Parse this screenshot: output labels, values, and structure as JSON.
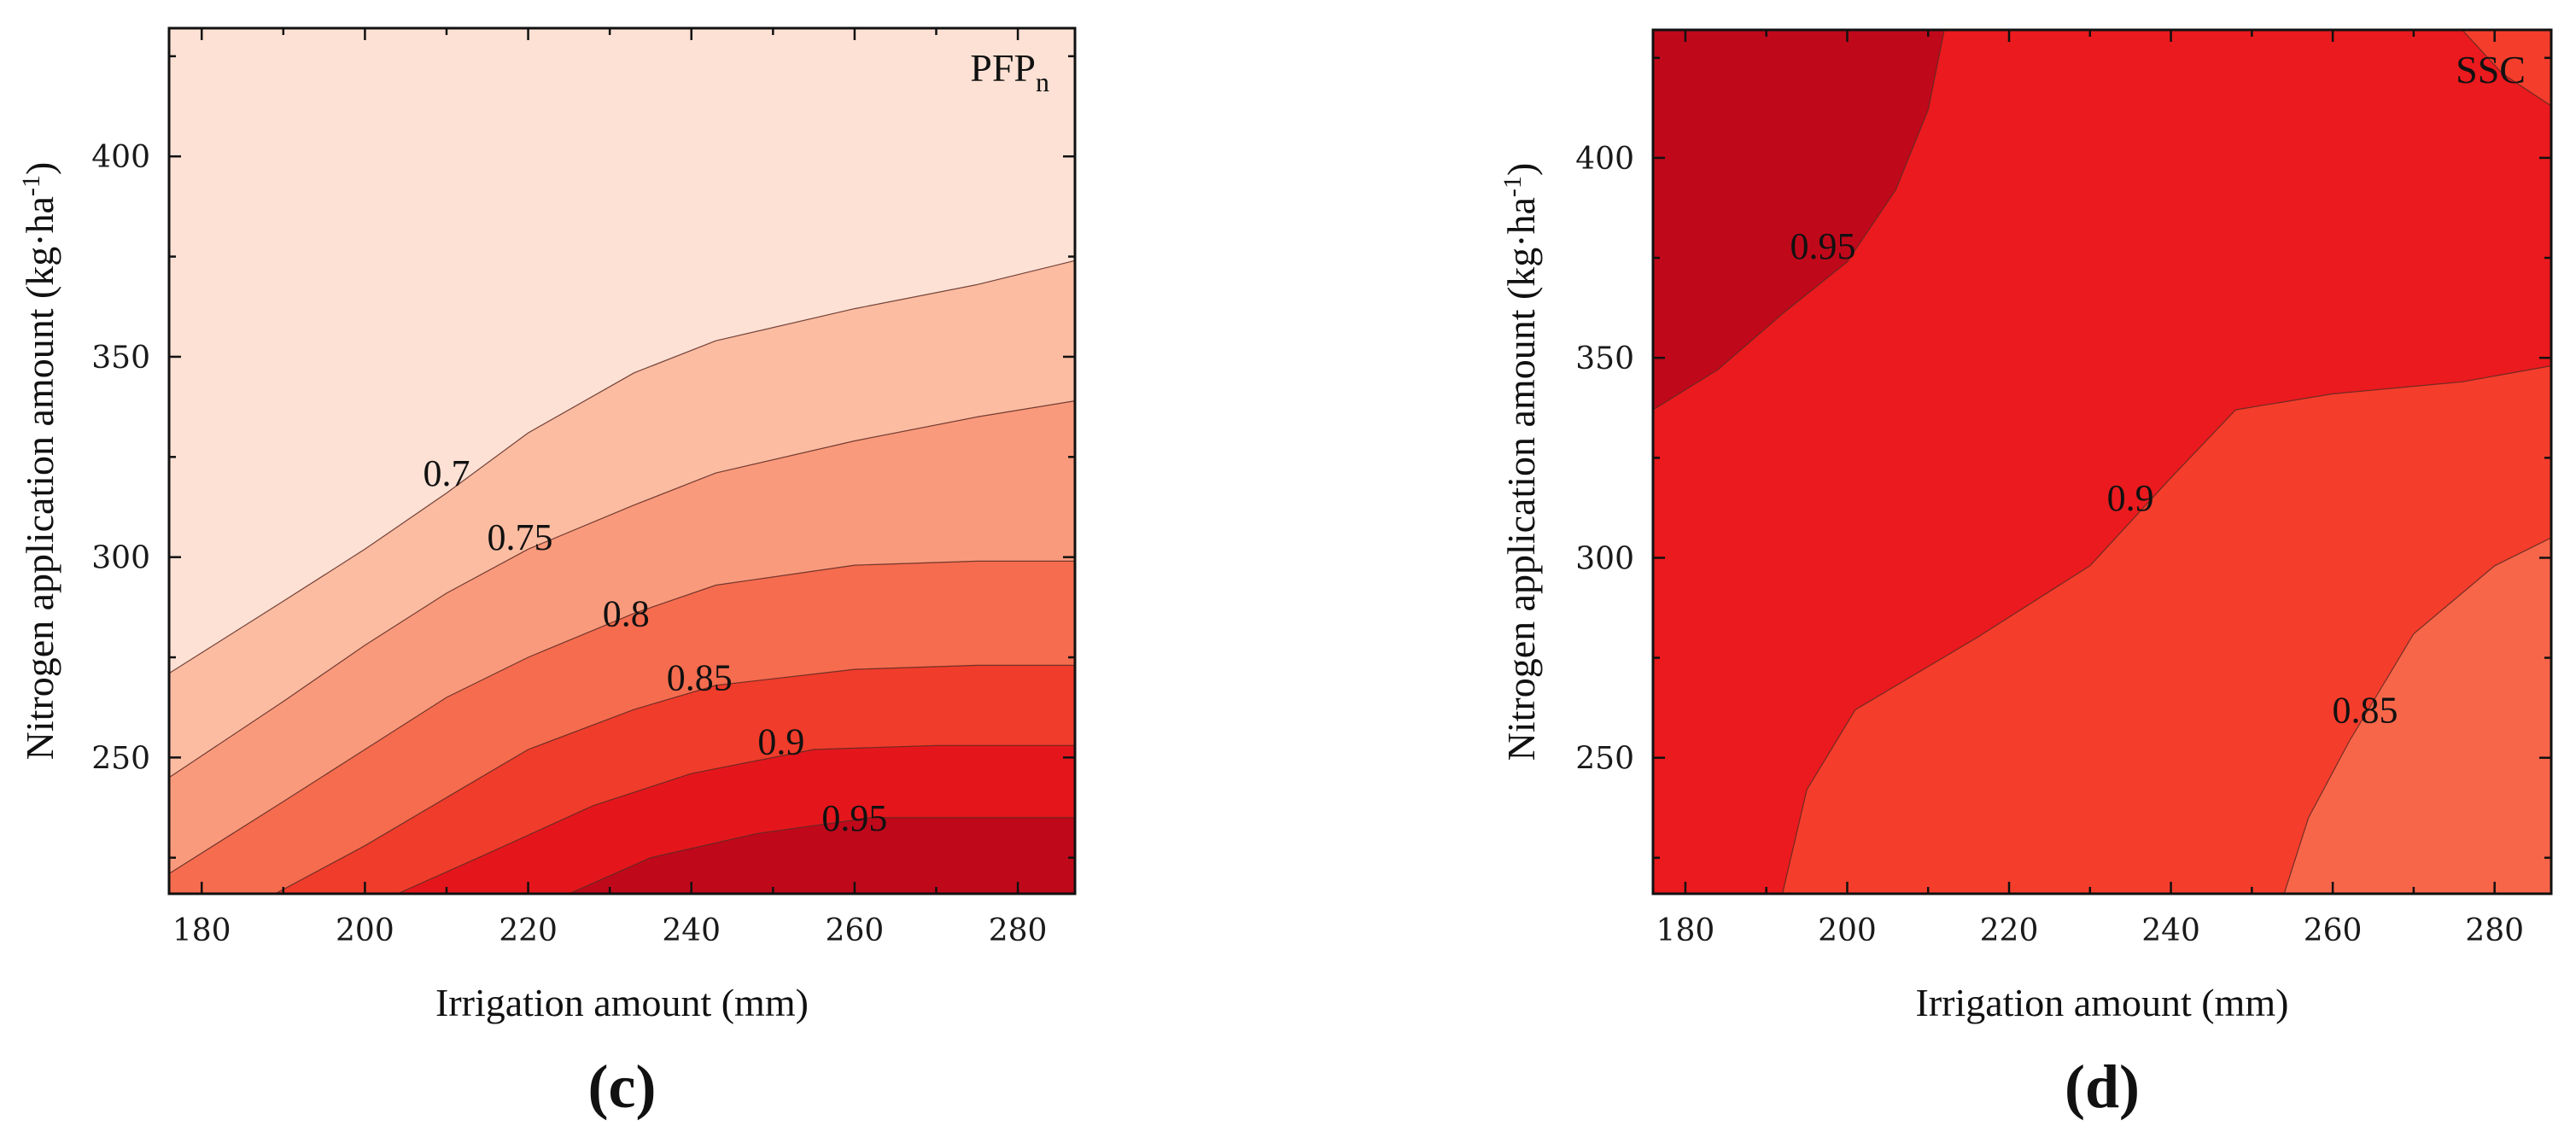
{
  "figure": {
    "chart_data": [
      {
        "type": "contour",
        "panel": "c",
        "caption": "(c)",
        "label_main": "PFP",
        "label_sub": "n",
        "xlabel": "Irrigation amount (mm)",
        "ylabel_main": "Nitrogen application amount (kg·ha",
        "ylabel_sup": "-1",
        "ylabel_close": ")",
        "xlim": [
          176,
          287
        ],
        "ylim": [
          216,
          432
        ],
        "xticks": [
          180,
          200,
          220,
          240,
          260,
          280
        ],
        "yticks": [
          250,
          300,
          350,
          400
        ],
        "xtick_labels": [
          "180",
          "200",
          "220",
          "240",
          "260",
          "280"
        ],
        "ytick_labels": [
          "250",
          "300",
          "350",
          "400"
        ],
        "levels": [
          {
            "value": 0.7,
            "label": "0.7",
            "label_at": [
              210,
              321
            ],
            "boundary": [
              [
                176,
                271
              ],
              [
                190,
                289
              ],
              [
                200,
                302
              ],
              [
                210,
                316
              ],
              [
                220,
                331
              ],
              [
                233,
                346
              ],
              [
                243,
                354
              ],
              [
                260,
                362
              ],
              [
                275,
                368
              ],
              [
                287,
                374
              ]
            ]
          },
          {
            "value": 0.75,
            "label": "0.75",
            "label_at": [
              219,
              305
            ],
            "boundary": [
              [
                176,
                245
              ],
              [
                190,
                264
              ],
              [
                200,
                278
              ],
              [
                210,
                291
              ],
              [
                220,
                302
              ],
              [
                233,
                313
              ],
              [
                243,
                321
              ],
              [
                260,
                329
              ],
              [
                275,
                335
              ],
              [
                287,
                339
              ]
            ]
          },
          {
            "value": 0.8,
            "label": "0.8",
            "label_at": [
              232,
              286
            ],
            "boundary": [
              [
                176,
                221
              ],
              [
                190,
                239
              ],
              [
                200,
                252
              ],
              [
                210,
                265
              ],
              [
                220,
                275
              ],
              [
                233,
                286
              ],
              [
                243,
                293
              ],
              [
                260,
                298
              ],
              [
                275,
                299
              ],
              [
                287,
                299
              ]
            ]
          },
          {
            "value": 0.85,
            "label": "0.85",
            "label_at": [
              241,
              270
            ],
            "boundary": [
              [
                189,
                216
              ],
              [
                200,
                228
              ],
              [
                210,
                240
              ],
              [
                220,
                252
              ],
              [
                233,
                262
              ],
              [
                243,
                268
              ],
              [
                260,
                272
              ],
              [
                275,
                273
              ],
              [
                287,
                273
              ]
            ]
          },
          {
            "value": 0.9,
            "label": "0.9",
            "label_at": [
              251,
              254
            ],
            "boundary": [
              [
                204,
                216
              ],
              [
                215,
                226
              ],
              [
                228,
                238
              ],
              [
                240,
                246
              ],
              [
                255,
                252
              ],
              [
                270,
                253
              ],
              [
                287,
                253
              ]
            ]
          },
          {
            "value": 0.95,
            "label": "0.95",
            "label_at": [
              260,
              235
            ],
            "boundary": [
              [
                225,
                216
              ],
              [
                235,
                225
              ],
              [
                248,
                231
              ],
              [
                262,
                235
              ],
              [
                287,
                235
              ]
            ]
          }
        ],
        "band_colors": [
          "#fde1d4",
          "#fcbca2",
          "#fa9a7c",
          "#f66c4f",
          "#f03c2b",
          "#e4161c",
          "#c0081b"
        ]
      },
      {
        "type": "contour",
        "panel": "d",
        "caption": "(d)",
        "label_main": "SSC",
        "label_sub": "",
        "xlabel": "Irrigation amount (mm)",
        "ylabel_main": "Nitrogen application amount (kg·ha",
        "ylabel_sup": "-1",
        "ylabel_close": ")",
        "xlim": [
          176,
          287
        ],
        "ylim": [
          216,
          432
        ],
        "xticks": [
          180,
          200,
          220,
          240,
          260,
          280
        ],
        "yticks": [
          250,
          300,
          350,
          400
        ],
        "xtick_labels": [
          "180",
          "200",
          "220",
          "240",
          "260",
          "280"
        ],
        "ytick_labels": [
          "250",
          "300",
          "350",
          "400"
        ],
        "levels": [
          {
            "value": 0.95,
            "label": "0.95",
            "label_at": [
              197,
              378
            ],
            "boundary": [
              [
                176,
                337
              ],
              [
                184,
                347
              ],
              [
                192,
                361
              ],
              [
                200,
                374
              ],
              [
                206,
                392
              ],
              [
                210,
                412
              ],
              [
                212,
                432
              ]
            ]
          },
          {
            "value": 0.9,
            "label": "0.9",
            "label_at": [
              235,
              315
            ],
            "boundary": [
              [
                192,
                216
              ],
              [
                195,
                242
              ],
              [
                201,
                262
              ],
              [
                216,
                280
              ],
              [
                230,
                298
              ],
              [
                240,
                320
              ],
              [
                248,
                337
              ],
              [
                260,
                341
              ],
              [
                276,
                344
              ],
              [
                287,
                348
              ]
            ]
          },
          {
            "value": 0.85,
            "label": "0.85",
            "label_at": [
              264,
              262
            ],
            "boundary": [
              [
                254,
                216
              ],
              [
                257,
                235
              ],
              [
                262,
                254
              ],
              [
                270,
                281
              ],
              [
                280,
                298
              ],
              [
                287,
                305
              ]
            ]
          }
        ],
        "band_colors": [
          "#c0081b",
          "#ea1a1e",
          "#f53d2c",
          "#f8664a"
        ],
        "corner_patch": {
          "value_region": "top-right",
          "color": "#f53d2c",
          "boundary": [
            [
              276,
              432
            ],
            [
              281,
              421
            ],
            [
              287,
              413
            ]
          ]
        }
      }
    ]
  }
}
